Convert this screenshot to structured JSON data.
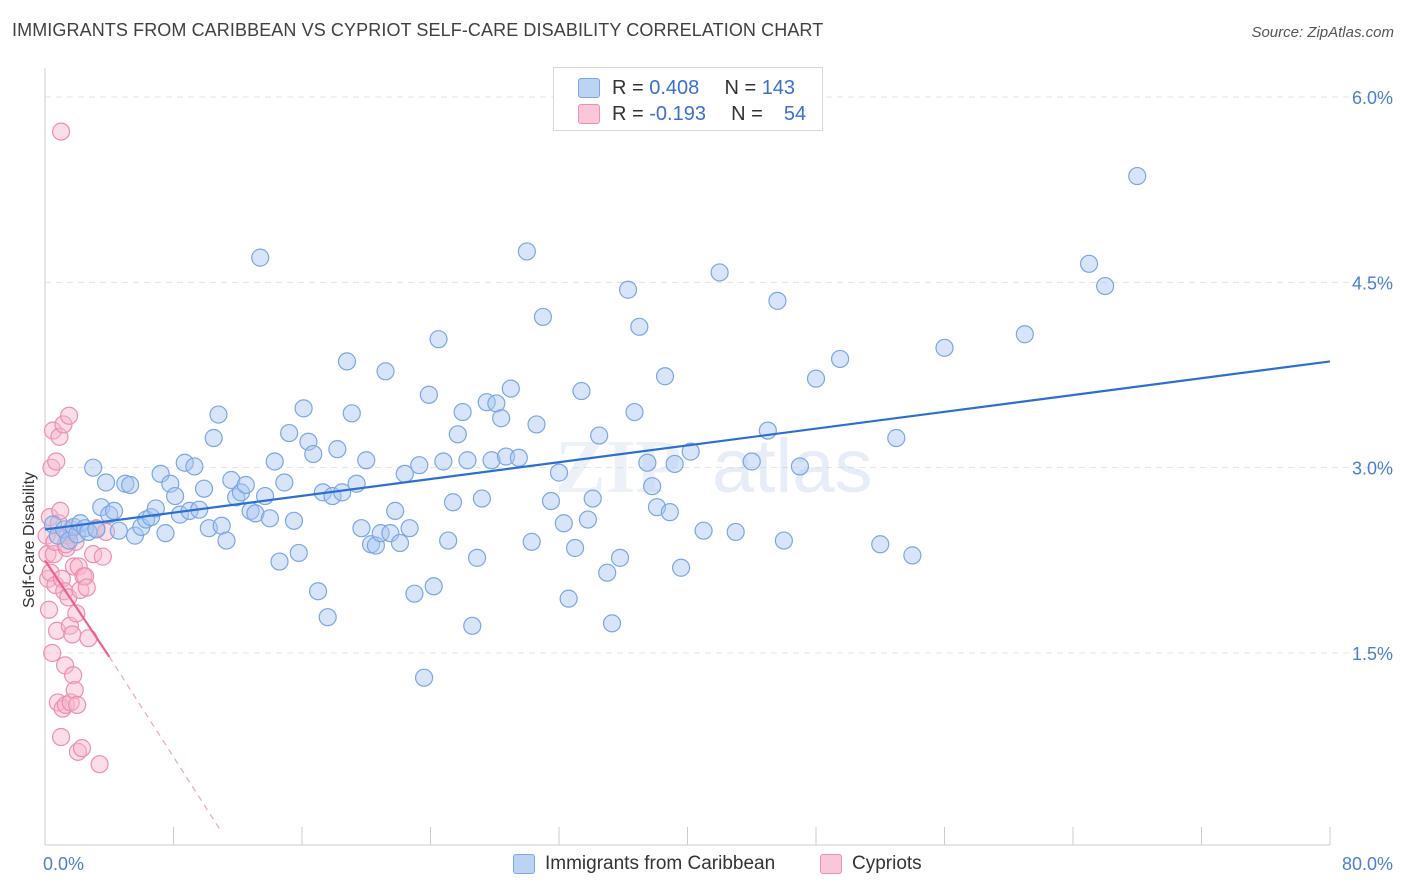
{
  "title": "IMMIGRANTS FROM CARIBBEAN VS CYPRIOT SELF-CARE DISABILITY CORRELATION CHART",
  "source": "Source: ZipAtlas.com",
  "watermark": {
    "zip": "ZIP",
    "atlas": "atlas"
  },
  "legend_top": {
    "rows": [
      {
        "r_label": "R =",
        "r_value": "0.408",
        "n_label": "N =",
        "n_value": "143"
      },
      {
        "r_label": "R =",
        "r_value": "-0.193",
        "n_label": "N =",
        "n_value": "54"
      }
    ]
  },
  "legend_bottom": {
    "items": [
      "Immigrants from Caribbean",
      "Cypriots"
    ]
  },
  "colors": {
    "blue_fill": "#a9c6f0",
    "blue_stroke": "#7aa6e6",
    "blue_line": "#2d6fd0",
    "pink_fill": "#f6b6cb",
    "pink_stroke": "#ee8fae",
    "pink_line": "#e8648f",
    "grid": "#e3e3e3",
    "tick_text": "#4a7fd0"
  },
  "chart_data": {
    "type": "scatter",
    "title": "IMMIGRANTS FROM CARIBBEAN VS CYPRIOT SELF-CARE DISABILITY CORRELATION CHART",
    "xlabel": "",
    "ylabel": "Self-Care Disability",
    "xlim": [
      0,
      80
    ],
    "ylim": [
      0,
      6.2
    ],
    "x_tick_labels": [
      "0.0%",
      "80.0%"
    ],
    "y_ticks": [
      1.5,
      3.0,
      4.5,
      6.0
    ],
    "y_tick_labels": [
      "1.5%",
      "3.0%",
      "4.5%",
      "6.0%"
    ],
    "grid": true,
    "legend_position": "bottom",
    "series": [
      {
        "name": "Immigrants from Caribbean",
        "color": "#a9c6f0",
        "trend": {
          "x": [
            0,
            80
          ],
          "y": [
            2.5,
            3.86
          ],
          "style": "solid"
        },
        "points": [
          [
            0.5,
            2.54
          ],
          [
            0.8,
            2.45
          ],
          [
            1.2,
            2.5
          ],
          [
            1.5,
            2.41
          ],
          [
            1.8,
            2.52
          ],
          [
            2.0,
            2.46
          ],
          [
            2.2,
            2.55
          ],
          [
            2.5,
            2.51
          ],
          [
            2.7,
            2.48
          ],
          [
            3.0,
            3.0
          ],
          [
            3.2,
            2.5
          ],
          [
            3.5,
            2.68
          ],
          [
            3.8,
            2.88
          ],
          [
            4.0,
            2.62
          ],
          [
            4.3,
            2.65
          ],
          [
            4.6,
            2.49
          ],
          [
            5.0,
            2.87
          ],
          [
            5.3,
            2.86
          ],
          [
            5.6,
            2.45
          ],
          [
            6.0,
            2.52
          ],
          [
            6.3,
            2.58
          ],
          [
            6.6,
            2.6
          ],
          [
            6.9,
            2.67
          ],
          [
            7.2,
            2.95
          ],
          [
            7.5,
            2.47
          ],
          [
            7.8,
            2.87
          ],
          [
            8.1,
            2.77
          ],
          [
            8.4,
            2.62
          ],
          [
            8.7,
            3.04
          ],
          [
            9.0,
            2.65
          ],
          [
            9.3,
            3.01
          ],
          [
            9.6,
            2.66
          ],
          [
            9.9,
            2.83
          ],
          [
            10.2,
            2.51
          ],
          [
            10.5,
            3.24
          ],
          [
            10.8,
            3.43
          ],
          [
            11.0,
            2.53
          ],
          [
            11.3,
            2.41
          ],
          [
            11.6,
            2.9
          ],
          [
            11.9,
            2.76
          ],
          [
            12.2,
            2.8
          ],
          [
            12.5,
            2.86
          ],
          [
            12.8,
            2.65
          ],
          [
            13.1,
            2.63
          ],
          [
            13.4,
            4.7
          ],
          [
            13.7,
            2.77
          ],
          [
            14.0,
            2.59
          ],
          [
            14.3,
            3.05
          ],
          [
            14.6,
            2.24
          ],
          [
            14.9,
            2.88
          ],
          [
            15.2,
            3.28
          ],
          [
            15.5,
            2.57
          ],
          [
            15.8,
            2.31
          ],
          [
            16.1,
            3.48
          ],
          [
            16.4,
            3.21
          ],
          [
            16.7,
            3.11
          ],
          [
            17.0,
            2.0
          ],
          [
            17.3,
            2.8
          ],
          [
            17.6,
            1.79
          ],
          [
            17.9,
            2.77
          ],
          [
            18.2,
            3.15
          ],
          [
            18.5,
            2.8
          ],
          [
            18.8,
            3.86
          ],
          [
            19.1,
            3.44
          ],
          [
            19.4,
            2.87
          ],
          [
            19.7,
            2.51
          ],
          [
            20.0,
            3.06
          ],
          [
            20.3,
            2.38
          ],
          [
            20.6,
            2.37
          ],
          [
            20.9,
            2.47
          ],
          [
            21.2,
            3.78
          ],
          [
            21.5,
            2.47
          ],
          [
            21.8,
            2.65
          ],
          [
            22.1,
            2.39
          ],
          [
            22.4,
            2.95
          ],
          [
            22.7,
            2.51
          ],
          [
            23.0,
            1.98
          ],
          [
            23.3,
            3.02
          ],
          [
            23.6,
            1.3
          ],
          [
            23.9,
            3.59
          ],
          [
            24.2,
            2.04
          ],
          [
            24.5,
            4.04
          ],
          [
            24.8,
            3.05
          ],
          [
            25.1,
            2.41
          ],
          [
            25.4,
            2.72
          ],
          [
            25.7,
            3.27
          ],
          [
            26.0,
            3.45
          ],
          [
            26.3,
            3.06
          ],
          [
            26.6,
            1.72
          ],
          [
            26.9,
            2.27
          ],
          [
            27.2,
            2.75
          ],
          [
            27.5,
            3.53
          ],
          [
            27.8,
            3.06
          ],
          [
            28.1,
            3.52
          ],
          [
            28.4,
            3.4
          ],
          [
            28.7,
            3.09
          ],
          [
            29.0,
            3.64
          ],
          [
            29.5,
            3.08
          ],
          [
            30.0,
            4.75
          ],
          [
            30.3,
            2.4
          ],
          [
            30.6,
            3.35
          ],
          [
            31.0,
            4.22
          ],
          [
            31.5,
            2.73
          ],
          [
            32.0,
            2.96
          ],
          [
            32.3,
            2.55
          ],
          [
            32.6,
            1.94
          ],
          [
            33.0,
            2.35
          ],
          [
            33.4,
            3.62
          ],
          [
            33.8,
            2.58
          ],
          [
            34.1,
            2.75
          ],
          [
            34.5,
            3.26
          ],
          [
            35.0,
            2.15
          ],
          [
            35.3,
            1.74
          ],
          [
            35.8,
            2.27
          ],
          [
            36.3,
            4.44
          ],
          [
            36.7,
            3.45
          ],
          [
            37.0,
            4.14
          ],
          [
            37.5,
            3.04
          ],
          [
            37.8,
            2.85
          ],
          [
            38.1,
            2.68
          ],
          [
            38.6,
            3.74
          ],
          [
            38.9,
            2.64
          ],
          [
            39.2,
            3.03
          ],
          [
            39.6,
            2.19
          ],
          [
            40.2,
            3.13
          ],
          [
            41.0,
            2.49
          ],
          [
            42.0,
            4.58
          ],
          [
            43.0,
            2.48
          ],
          [
            44.0,
            3.05
          ],
          [
            45.0,
            3.3
          ],
          [
            45.6,
            4.35
          ],
          [
            46.0,
            2.41
          ],
          [
            47.0,
            3.01
          ],
          [
            48.0,
            3.72
          ],
          [
            49.5,
            3.88
          ],
          [
            52.0,
            2.38
          ],
          [
            53.0,
            3.24
          ],
          [
            54.0,
            2.29
          ],
          [
            56.0,
            3.97
          ],
          [
            61.0,
            4.08
          ],
          [
            65.0,
            4.65
          ],
          [
            66.0,
            4.47
          ],
          [
            68.0,
            5.36
          ]
        ]
      },
      {
        "name": "Cypriots",
        "color": "#f6b6cb",
        "trend": {
          "x": [
            0,
            4.0
          ],
          "y": [
            2.25,
            1.47
          ],
          "style": "solid"
        },
        "trend_dashed": {
          "x": [
            4.0,
            11.0
          ],
          "y": [
            1.47,
            0.05
          ],
          "style": "dashed"
        },
        "points": [
          [
            0.1,
            2.45
          ],
          [
            0.15,
            2.3
          ],
          [
            0.2,
            2.1
          ],
          [
            0.25,
            1.85
          ],
          [
            0.3,
            2.6
          ],
          [
            0.35,
            2.15
          ],
          [
            0.4,
            3.0
          ],
          [
            0.45,
            1.5
          ],
          [
            0.5,
            3.3
          ],
          [
            0.55,
            2.3
          ],
          [
            0.6,
            2.4
          ],
          [
            0.65,
            2.05
          ],
          [
            0.7,
            3.05
          ],
          [
            0.75,
            1.68
          ],
          [
            0.8,
            1.1
          ],
          [
            0.85,
            2.55
          ],
          [
            0.9,
            3.25
          ],
          [
            0.95,
            2.65
          ],
          [
            1.0,
            0.82
          ],
          [
            1.05,
            2.1
          ],
          [
            1.1,
            1.05
          ],
          [
            1.15,
            3.35
          ],
          [
            1.2,
            2.0
          ],
          [
            1.25,
            1.4
          ],
          [
            1.3,
            1.08
          ],
          [
            1.35,
            2.35
          ],
          [
            1.4,
            2.45
          ],
          [
            1.45,
            1.95
          ],
          [
            1.5,
            3.42
          ],
          [
            1.55,
            1.72
          ],
          [
            1.6,
            1.1
          ],
          [
            1.65,
            2.5
          ],
          [
            1.7,
            1.65
          ],
          [
            1.75,
            1.32
          ],
          [
            1.8,
            2.2
          ],
          [
            1.85,
            1.2
          ],
          [
            1.9,
            2.4
          ],
          [
            1.95,
            1.82
          ],
          [
            2.0,
            1.08
          ],
          [
            2.05,
            0.7
          ],
          [
            2.1,
            2.2
          ],
          [
            2.2,
            2.01
          ],
          [
            2.3,
            0.73
          ],
          [
            2.4,
            2.12
          ],
          [
            2.5,
            2.12
          ],
          [
            2.6,
            2.03
          ],
          [
            2.7,
            1.62
          ],
          [
            3.0,
            2.3
          ],
          [
            3.2,
            2.51
          ],
          [
            3.4,
            0.6
          ],
          [
            3.6,
            2.28
          ],
          [
            3.8,
            2.48
          ],
          [
            1.0,
            5.72
          ],
          [
            1.3,
            2.38
          ]
        ]
      }
    ]
  }
}
